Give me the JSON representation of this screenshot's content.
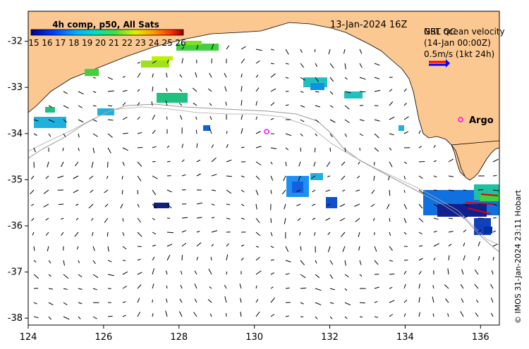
{
  "map": {
    "title_time": "13-Jan-2024 16Z",
    "colorbar_title": "4h comp, p50, All Sats",
    "colorbar_ticks": [
      "15",
      "16",
      "17",
      "18",
      "19",
      "20",
      "21",
      "22",
      "23",
      "24",
      "25",
      "26"
    ],
    "legend_line1": "NRT ocean velocity",
    "legend_line2": "(14-Jan 00:00Z)",
    "legend_line3": "GSL QC",
    "legend_speed": "0.5m/s (1kt 24h)",
    "argo_label": "Argo",
    "credit": "© IMOS 31-Jan-2024 23:11 Hobart",
    "x_ticks": [
      "124",
      "126",
      "128",
      "130",
      "132",
      "134",
      "136"
    ],
    "y_ticks": [
      "-32",
      "-33",
      "-34",
      "-35",
      "-36",
      "-37",
      "-38"
    ],
    "lon_range": [
      124,
      136.5
    ],
    "lat_range": [
      -38.15,
      -31.35
    ],
    "colors": {
      "land": "#fcc891",
      "ocean": "#ffffff",
      "arrow_legend_red": "#ff0000",
      "arrow_legend_blue": "#0000ff",
      "argo": "#ff00ff"
    }
  }
}
